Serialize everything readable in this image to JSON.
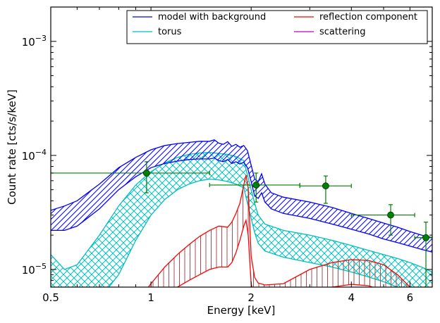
{
  "chart_data": {
    "type": "line",
    "title": "",
    "xlabel": "Energy [keV]",
    "ylabel": "Count rate [cts/s/keV]",
    "x_scale": "log",
    "y_scale": "log",
    "xlim": [
      0.5,
      7.0
    ],
    "ylim": [
      7e-06,
      0.002
    ],
    "legend_position": "top-right",
    "legend": [
      {
        "name": "model with background",
        "color": "#0000ff"
      },
      {
        "name": "reflection component",
        "color": "#ff0000"
      },
      {
        "name": "torus",
        "color": "#00bfbf"
      },
      {
        "name": "scattering",
        "color": "#bf00bf"
      }
    ],
    "x_ticks": [
      {
        "value": 0.5,
        "label": "0.5"
      },
      {
        "value": 1,
        "label": "1"
      },
      {
        "value": 2,
        "label": "2"
      },
      {
        "value": 4,
        "label": "4"
      },
      {
        "value": 6,
        "label": "6"
      }
    ],
    "y_ticks": [
      {
        "exp": -5,
        "base": "10",
        "sup": "−5"
      },
      {
        "exp": -4,
        "base": "10",
        "sup": "−4"
      },
      {
        "exp": -3,
        "base": "10",
        "sup": "−3"
      }
    ],
    "series": [
      {
        "name": "model with background",
        "color": "#0000ff",
        "x": [
          0.5,
          0.55,
          0.6,
          0.7,
          0.8,
          0.9,
          1.0,
          1.1,
          1.2,
          1.3,
          1.4,
          1.5,
          1.55,
          1.6,
          1.65,
          1.7,
          1.75,
          1.8,
          1.85,
          1.9,
          1.95,
          2.0,
          2.05,
          2.1,
          2.15,
          2.2,
          2.3,
          2.5,
          3.0,
          3.5,
          4.0,
          4.5,
          5.0,
          5.5,
          6.0,
          6.5,
          7.0
        ],
        "upper": [
          3.3e-05,
          3.6e-05,
          4e-05,
          5.6e-05,
          7.8e-05,
          9.6e-05,
          0.000112,
          0.000122,
          0.000127,
          0.00013,
          0.000133,
          0.000133,
          0.000137,
          0.000128,
          0.000125,
          0.000132,
          0.00012,
          0.000125,
          0.000118,
          0.000122,
          0.00011,
          8.2e-05,
          6.2e-05,
          5.9e-05,
          6.9e-05,
          5.6e-05,
          4.7e-05,
          4.3e-05,
          3.9e-05,
          3.5e-05,
          3.1e-05,
          2.8e-05,
          2.55e-05,
          2.35e-05,
          2.15e-05,
          2e-05,
          1.9e-05
        ],
        "lower": [
          2.2e-05,
          2.2e-05,
          2.4e-05,
          3.4e-05,
          5e-05,
          6.5e-05,
          7.8e-05,
          8.5e-05,
          8.9e-05,
          9.2e-05,
          9.3e-05,
          9.3e-05,
          9.5e-05,
          9e-05,
          8.8e-05,
          9.2e-05,
          8.5e-05,
          8.8e-05,
          8.4e-05,
          8.7e-05,
          7.8e-05,
          5.9e-05,
          4.4e-05,
          4.2e-05,
          4.7e-05,
          3.9e-05,
          3.4e-05,
          3.1e-05,
          2.8e-05,
          2.5e-05,
          2.25e-05,
          2.05e-05,
          1.85e-05,
          1.72e-05,
          1.6e-05,
          1.5e-05,
          1.42e-05
        ]
      },
      {
        "name": "torus",
        "color": "#00bfbf",
        "x": [
          0.5,
          0.55,
          0.6,
          0.7,
          0.8,
          0.9,
          1.0,
          1.1,
          1.2,
          1.3,
          1.4,
          1.5,
          1.6,
          1.7,
          1.8,
          1.9,
          2.0,
          2.05,
          2.1,
          2.2,
          2.5,
          3.0,
          3.5,
          4.0,
          4.5,
          5.0,
          5.5,
          6.0,
          6.5,
          7.0
        ],
        "upper": [
          1.35e-05,
          1e-05,
          1.1e-05,
          2e-05,
          3.6e-05,
          5.5e-05,
          7.2e-05,
          8.6e-05,
          9.6e-05,
          0.000102,
          0.000105,
          0.000106,
          0.000104,
          0.000102,
          9.8e-05,
          9e-05,
          5e-05,
          3.8e-05,
          3e-05,
          2.5e-05,
          2.2e-05,
          2e-05,
          1.8e-05,
          1.62e-05,
          1.47e-05,
          1.35e-05,
          1.25e-05,
          1.15e-05,
          1.05e-05,
          9.5e-06
        ],
        "lower": [
          5.5e-06,
          5.5e-06,
          5.5e-06,
          5.5e-06,
          9e-06,
          1.8e-05,
          3e-05,
          4.1e-05,
          5e-05,
          5.6e-05,
          6e-05,
          6.2e-05,
          6.1e-05,
          5.9e-05,
          5.6e-05,
          5.2e-05,
          2.8e-05,
          2.1e-05,
          1.7e-05,
          1.45e-05,
          1.28e-05,
          1.15e-05,
          1.05e-05,
          9.5e-06,
          8.6e-06,
          7.8e-06,
          7e-06,
          6.3e-06,
          5.7e-06,
          5.2e-06
        ]
      },
      {
        "name": "reflection component",
        "color": "#ff0000",
        "x": [
          0.9,
          1.0,
          1.1,
          1.2,
          1.3,
          1.4,
          1.5,
          1.6,
          1.7,
          1.75,
          1.8,
          1.85,
          1.9,
          1.93,
          1.96,
          2.0,
          2.05,
          2.1,
          2.2,
          2.5,
          3.0,
          3.5,
          4.0,
          4.5,
          5.0,
          5.5,
          6.0
        ],
        "upper": [
          5e-06,
          7.5e-06,
          1.05e-05,
          1.35e-05,
          1.65e-05,
          1.95e-05,
          2.2e-05,
          2.4e-05,
          2.35e-05,
          2.6e-05,
          3.1e-05,
          3.8e-05,
          5.5e-05,
          6.7e-05,
          5.2e-05,
          1.3e-05,
          8.5e-06,
          7.6e-06,
          7.3e-06,
          7.5e-06,
          1e-05,
          1.15e-05,
          1.22e-05,
          1.2e-05,
          1.1e-05,
          9e-06,
          7e-06
        ],
        "lower": [
          4.5e-06,
          5e-06,
          6e-06,
          7e-06,
          8e-06,
          9e-06,
          1e-05,
          1.05e-05,
          1.05e-05,
          1.15e-05,
          1.4e-05,
          1.8e-05,
          2.4e-05,
          2.7e-05,
          2e-05,
          7.5e-06,
          5.5e-06,
          5e-06,
          4.8e-06,
          5e-06,
          6.3e-06,
          7e-06,
          7.4e-06,
          7.2e-06,
          6.5e-06,
          5.5e-06,
          4.5e-06
        ]
      },
      {
        "name": "scattering",
        "color": "#bf00bf",
        "x": [],
        "upper": [],
        "lower": []
      }
    ],
    "data_points": {
      "name": "data",
      "color": "#007f00",
      "points": [
        {
          "x": 0.97,
          "y": 7e-05,
          "xlo": 0.5,
          "xhi": 1.5,
          "ylo": 4.7e-05,
          "yhi": 8.8e-05
        },
        {
          "x": 2.07,
          "y": 5.5e-05,
          "xlo": 1.5,
          "xhi": 2.8,
          "ylo": 3.9e-05,
          "yhi": 7e-05
        },
        {
          "x": 3.35,
          "y": 5.4e-05,
          "xlo": 2.8,
          "xhi": 4.0,
          "ylo": 3.8e-05,
          "yhi": 6.6e-05
        },
        {
          "x": 5.25,
          "y": 3e-05,
          "xlo": 4.0,
          "xhi": 6.2,
          "ylo": 2e-05,
          "yhi": 3.7e-05
        },
        {
          "x": 6.7,
          "y": 1.9e-05,
          "xlo": 6.2,
          "xhi": 7.0,
          "ylo": 5e-06,
          "yhi": 2.6e-05
        }
      ]
    }
  }
}
